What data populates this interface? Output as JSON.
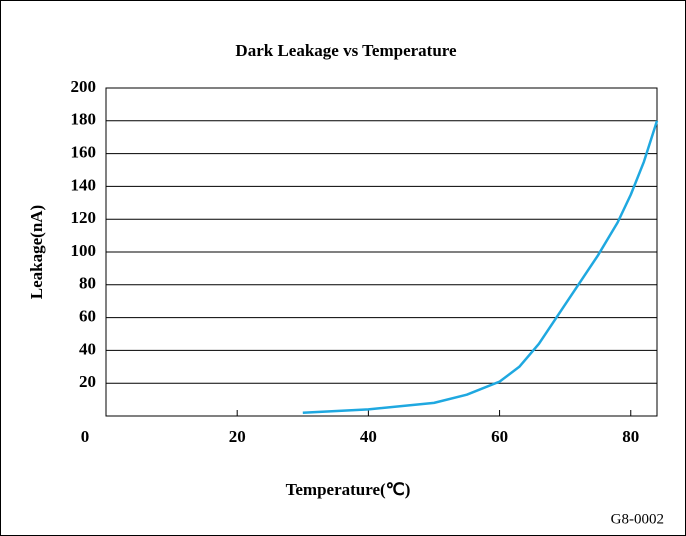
{
  "chart_data": {
    "type": "line",
    "title": "Dark Leakage vs Temperature",
    "x_label": "Temperature(℃)",
    "y_label": "Leakage(nA)",
    "annotation": "G8-0002",
    "x": [
      30,
      40,
      50,
      55,
      60,
      63,
      66,
      69,
      72,
      75,
      78,
      80,
      82,
      84
    ],
    "series": [
      {
        "name": "Leakage",
        "color": "#1fa8e0",
        "values": [
          2,
          4,
          8,
          13,
          21,
          30,
          44,
          62,
          80,
          98,
          118,
          135,
          155,
          180
        ]
      }
    ],
    "xlim": [
      0,
      84
    ],
    "xticks": [
      0,
      20,
      40,
      60,
      80
    ],
    "ylim": [
      0,
      200
    ],
    "yticks": [
      20,
      40,
      60,
      80,
      100,
      120,
      140,
      160,
      180,
      200
    ],
    "grid": true
  }
}
